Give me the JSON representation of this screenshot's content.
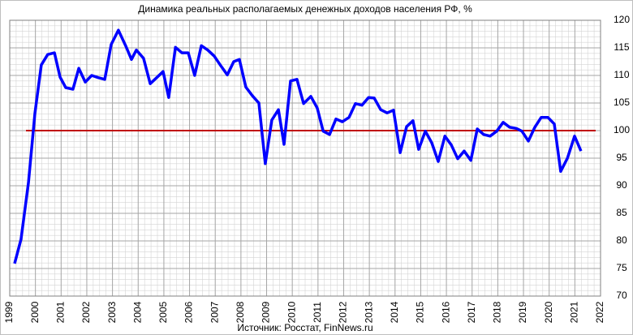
{
  "chart_data": {
    "type": "line",
    "title": "Динамика реальных располагаемых денежных доходов населения РФ, %",
    "source": "Источник: Росстат, FinNews.ru",
    "x": [
      1999.19,
      1999.44,
      1999.73,
      1999.98,
      2000.23,
      2000.48,
      2000.74,
      2000.96,
      2001.18,
      2001.46,
      2001.69,
      2001.94,
      2002.19,
      2002.44,
      2002.7,
      2002.95,
      2003.23,
      2003.52,
      2003.74,
      2003.93,
      2004.21,
      2004.47,
      2004.72,
      2004.97,
      2005.19,
      2005.45,
      2005.7,
      2005.95,
      2006.2,
      2006.46,
      2006.71,
      2006.96,
      2007.21,
      2007.47,
      2007.72,
      2007.94,
      2008.19,
      2008.45,
      2008.7,
      2008.95,
      2009.2,
      2009.46,
      2009.68,
      2009.93,
      2010.18,
      2010.44,
      2010.72,
      2010.97,
      2011.2,
      2011.45,
      2011.7,
      2011.95,
      2012.21,
      2012.46,
      2012.71,
      2012.97,
      2013.19,
      2013.44,
      2013.69,
      2013.94,
      2014.2,
      2014.45,
      2014.7,
      2014.92,
      2015.18,
      2015.43,
      2015.68,
      2015.94,
      2016.19,
      2016.44,
      2016.69,
      2016.95,
      2017.2,
      2017.45,
      2017.7,
      2017.96,
      2018.21,
      2018.46,
      2018.72,
      2018.94,
      2019.19,
      2019.44,
      2019.69,
      2019.95,
      2020.2,
      2020.45,
      2020.71,
      2020.99,
      2021.24
    ],
    "series": [
      {
        "color": "#0000ff",
        "values": [
          75.9,
          80.3,
          90.6,
          103.1,
          111.9,
          113.8,
          114.1,
          109.7,
          107.8,
          107.5,
          111.3,
          108.8,
          110,
          109.6,
          109.3,
          115.6,
          118.2,
          115.3,
          112.9,
          114.6,
          113.1,
          108.5,
          109.6,
          110.7,
          106,
          115.1,
          114.1,
          114.1,
          110,
          115.4,
          114.6,
          113.5,
          111.8,
          110.1,
          112.5,
          112.9,
          107.9,
          106.3,
          105,
          94,
          101.9,
          103.8,
          97.5,
          109,
          109.3,
          104.9,
          106.2,
          104.1,
          99.9,
          99.3,
          102.1,
          101.6,
          102.4,
          104.9,
          104.6,
          106,
          105.9,
          103.8,
          103.2,
          103.7,
          96,
          100.7,
          101.8,
          96.6,
          99.9,
          97.8,
          94.4,
          99,
          97.4,
          94.9,
          96.3,
          94.6,
          100.3,
          99.3,
          99,
          99.9,
          101.5,
          100.6,
          100.4,
          99.9,
          98.1,
          100.6,
          102.4,
          102.4,
          101.2,
          92.6,
          95,
          99,
          96.3
        ]
      }
    ],
    "reference_line": {
      "value": 100,
      "color": "#c00000"
    },
    "xlim": [
      1999,
      2022
    ],
    "xticks": [
      1999,
      2000,
      2001,
      2002,
      2003,
      2004,
      2005,
      2006,
      2007,
      2008,
      2009,
      2010,
      2011,
      2012,
      2013,
      2014,
      2015,
      2016,
      2017,
      2018,
      2019,
      2020,
      2021,
      2022
    ],
    "ylim": [
      70,
      120
    ],
    "yticks": [
      70,
      75,
      80,
      85,
      90,
      95,
      100,
      105,
      110,
      115,
      120
    ],
    "grid": true
  }
}
